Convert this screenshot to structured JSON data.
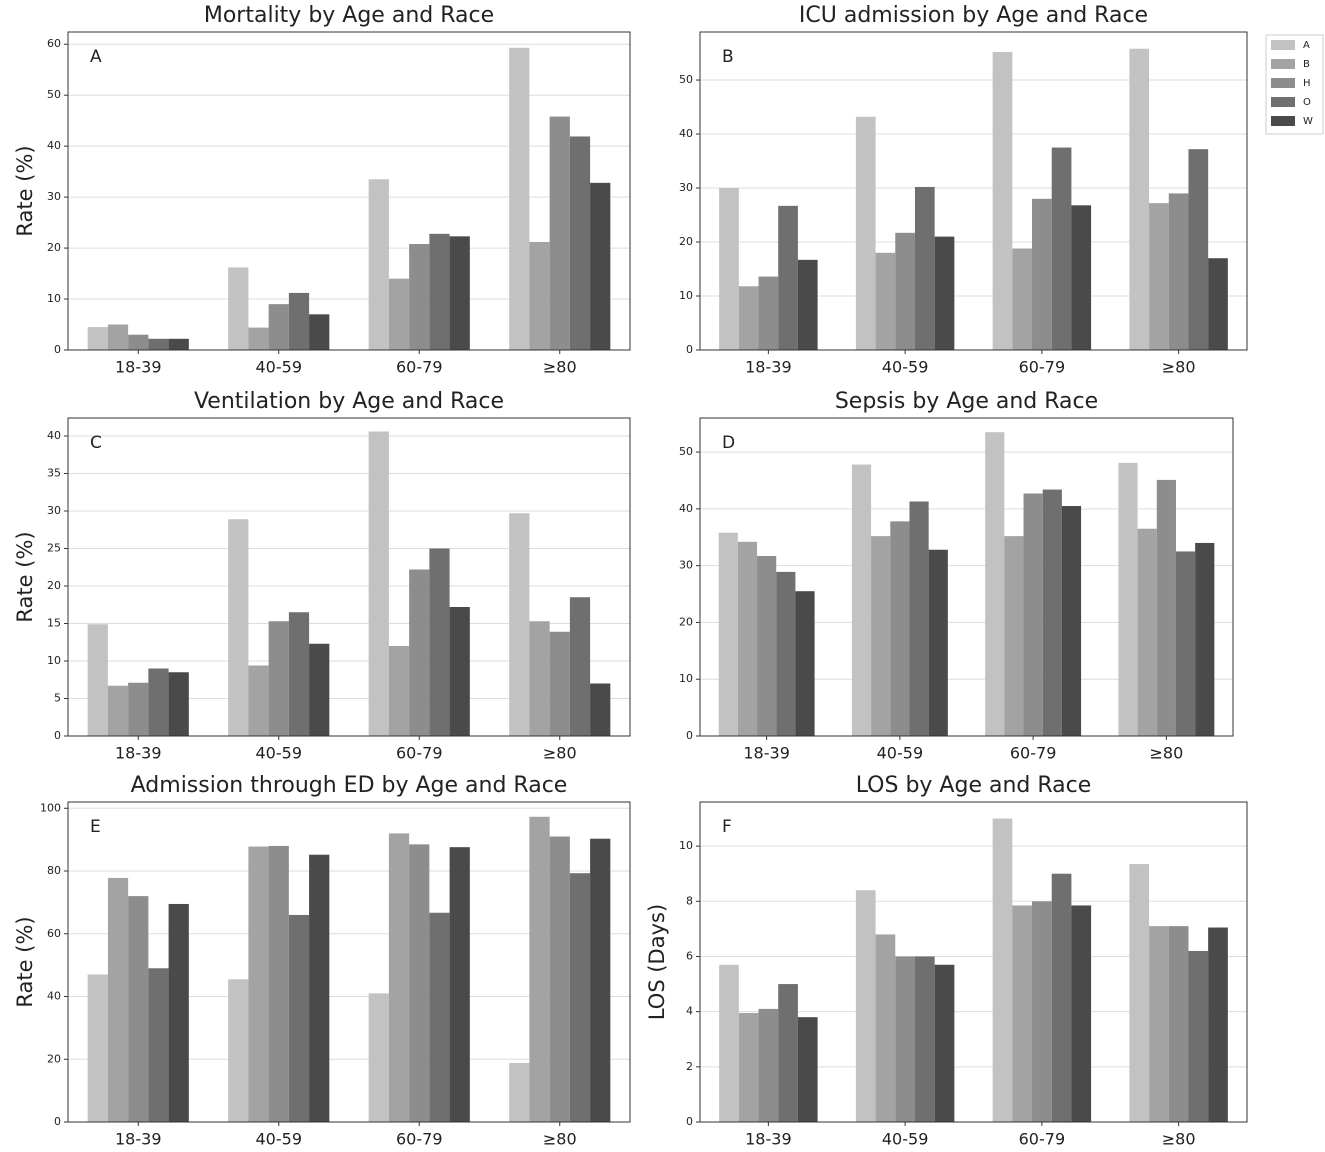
{
  "chart_data": [
    {
      "type": "bar",
      "title": "Mortality by Age and Race",
      "annotation": "A",
      "ylabel": "Rate (%)",
      "categories": [
        "18-39",
        "40-59",
        "60-79",
        "≥80"
      ],
      "series": [
        {
          "name": "A",
          "color": "#c2c2c2",
          "values": [
            4.5,
            16.2,
            33.5,
            59.3
          ]
        },
        {
          "name": "B",
          "color": "#a3a3a3",
          "values": [
            5,
            4.4,
            14,
            21.2
          ]
        },
        {
          "name": "H",
          "color": "#8d8d8d",
          "values": [
            3,
            9,
            20.8,
            45.8
          ]
        },
        {
          "name": "O",
          "color": "#6f6f6f",
          "values": [
            2.2,
            11.2,
            22.8,
            41.9
          ]
        },
        {
          "name": "W",
          "color": "#4a4a4a",
          "values": [
            2.2,
            7,
            22.3,
            32.8
          ]
        }
      ],
      "ylim": [
        0,
        62.4
      ],
      "yticks": [
        0,
        10,
        20,
        30,
        40,
        50,
        60
      ],
      "grid": true
    },
    {
      "type": "bar",
      "title": "ICU admission by Age and Race",
      "annotation": "B",
      "categories": [
        "18-39",
        "40-59",
        "60-79",
        "≥80"
      ],
      "series": [
        {
          "name": "A",
          "color": "#c2c2c2",
          "values": [
            30,
            43.2,
            55.2,
            55.8
          ]
        },
        {
          "name": "B",
          "color": "#a3a3a3",
          "values": [
            11.8,
            18,
            18.8,
            27.2
          ]
        },
        {
          "name": "H",
          "color": "#8d8d8d",
          "values": [
            13.6,
            21.7,
            28,
            29
          ]
        },
        {
          "name": "O",
          "color": "#6f6f6f",
          "values": [
            26.7,
            30.2,
            37.5,
            37.2
          ]
        },
        {
          "name": "W",
          "color": "#4a4a4a",
          "values": [
            16.7,
            21,
            26.8,
            17
          ]
        }
      ],
      "ylim": [
        0,
        58.9
      ],
      "yticks": [
        0,
        10,
        20,
        30,
        40,
        50
      ],
      "grid": true,
      "legend": "outside-right"
    },
    {
      "type": "bar",
      "title": "Ventilation by Age and Race",
      "annotation": "C",
      "ylabel": "Rate (%)",
      "categories": [
        "18-39",
        "40-59",
        "60-79",
        "≥80"
      ],
      "series": [
        {
          "name": "A",
          "color": "#c2c2c2",
          "values": [
            14.9,
            28.9,
            40.6,
            29.7
          ]
        },
        {
          "name": "B",
          "color": "#a3a3a3",
          "values": [
            6.7,
            9.4,
            12,
            15.3
          ]
        },
        {
          "name": "H",
          "color": "#8d8d8d",
          "values": [
            7.1,
            15.3,
            22.2,
            13.9
          ]
        },
        {
          "name": "O",
          "color": "#6f6f6f",
          "values": [
            9,
            16.5,
            25,
            18.5
          ]
        },
        {
          "name": "W",
          "color": "#4a4a4a",
          "values": [
            8.5,
            12.3,
            17.2,
            7
          ]
        }
      ],
      "ylim": [
        0,
        42.4
      ],
      "yticks": [
        0,
        5,
        10,
        15,
        20,
        25,
        30,
        35,
        40
      ],
      "grid": true
    },
    {
      "type": "bar",
      "title": "Sepsis by Age and Race",
      "annotation": "D",
      "categories": [
        "18-39",
        "40-59",
        "60-79",
        "≥80"
      ],
      "series": [
        {
          "name": "A",
          "color": "#c2c2c2",
          "values": [
            35.8,
            47.8,
            53.5,
            48.1
          ]
        },
        {
          "name": "B",
          "color": "#a3a3a3",
          "values": [
            34.2,
            35.2,
            35.2,
            36.5
          ]
        },
        {
          "name": "H",
          "color": "#8d8d8d",
          "values": [
            31.7,
            37.8,
            42.7,
            45.1
          ]
        },
        {
          "name": "O",
          "color": "#6f6f6f",
          "values": [
            28.9,
            41.3,
            43.4,
            32.5
          ]
        },
        {
          "name": "W",
          "color": "#4a4a4a",
          "values": [
            25.5,
            32.8,
            40.5,
            34
          ]
        }
      ],
      "ylim": [
        0,
        56
      ],
      "yticks": [
        0,
        10,
        20,
        30,
        40,
        50
      ],
      "grid": true
    },
    {
      "type": "bar",
      "title": "Admission through ED by Age and Race",
      "annotation": "E",
      "ylabel": "Rate (%)",
      "categories": [
        "18-39",
        "40-59",
        "60-79",
        "≥80"
      ],
      "series": [
        {
          "name": "A",
          "color": "#c2c2c2",
          "values": [
            47,
            45.5,
            41,
            18.8
          ]
        },
        {
          "name": "B",
          "color": "#a3a3a3",
          "values": [
            77.8,
            87.8,
            92,
            97.3
          ]
        },
        {
          "name": "H",
          "color": "#8d8d8d",
          "values": [
            72,
            88,
            88.5,
            91
          ]
        },
        {
          "name": "O",
          "color": "#6f6f6f",
          "values": [
            49,
            66,
            66.7,
            79.3
          ]
        },
        {
          "name": "W",
          "color": "#4a4a4a",
          "values": [
            69.5,
            85.2,
            87.6,
            90.3
          ]
        }
      ],
      "ylim": [
        0,
        102
      ],
      "yticks": [
        0,
        20,
        40,
        60,
        80,
        100
      ],
      "grid": true
    },
    {
      "type": "bar",
      "title": "LOS by Age and Race",
      "annotation": "F",
      "ylabel": "LOS (Days)",
      "categories": [
        "18-39",
        "40-59",
        "60-79",
        "≥80"
      ],
      "series": [
        {
          "name": "A",
          "color": "#c2c2c2",
          "values": [
            5.7,
            8.4,
            11,
            9.35
          ]
        },
        {
          "name": "B",
          "color": "#a3a3a3",
          "values": [
            3.95,
            6.8,
            7.85,
            7.1
          ]
        },
        {
          "name": "H",
          "color": "#8d8d8d",
          "values": [
            4.1,
            6,
            8,
            7.1
          ]
        },
        {
          "name": "O",
          "color": "#6f6f6f",
          "values": [
            5,
            6,
            9,
            6.2
          ]
        },
        {
          "name": "W",
          "color": "#4a4a4a",
          "values": [
            3.8,
            5.7,
            7.85,
            7.05
          ]
        }
      ],
      "ylim": [
        0,
        11.6
      ],
      "yticks": [
        0,
        2,
        4,
        6,
        8,
        10
      ],
      "grid": true
    }
  ]
}
